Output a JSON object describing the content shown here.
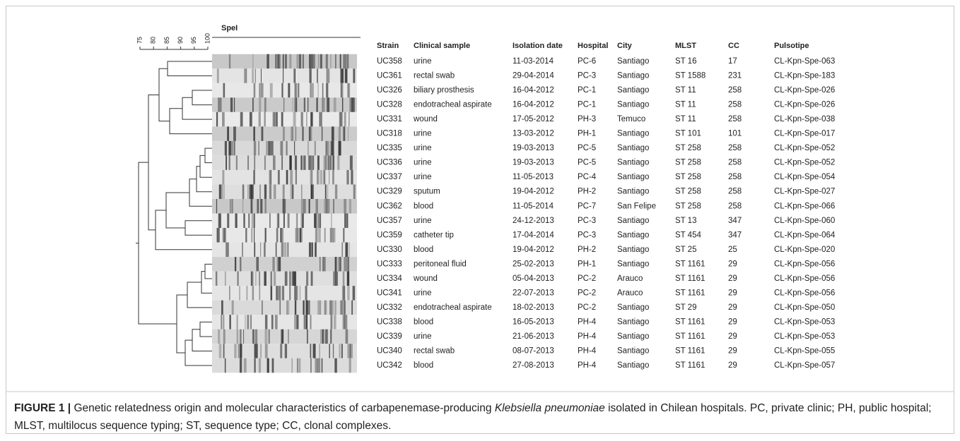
{
  "figure": {
    "gel_label": "SpeI",
    "scale_ticks": [
      75,
      80,
      85,
      90,
      95,
      100
    ],
    "table": {
      "headers": [
        "Strain",
        "Clinical sample",
        "Isolation date",
        "Hospital",
        "City",
        "MLST",
        "CC",
        "Pulsotipe"
      ],
      "rows": [
        [
          "UC358",
          "urine",
          "11-03-2014",
          "PC-6",
          "Santiago",
          "ST 16",
          "17",
          "CL-Kpn-Spe-063"
        ],
        [
          "UC361",
          "rectal swab",
          "29-04-2014",
          "PC-3",
          "Santiago",
          "ST 1588",
          "231",
          "CL-Kpn-Spe-183"
        ],
        [
          "UC326",
          "biliary prosthesis",
          "16-04-2012",
          "PC-1",
          "Santiago",
          "ST 11",
          "258",
          "CL-Kpn-Spe-026"
        ],
        [
          "UC328",
          "endotracheal aspirate",
          "16-04-2012",
          "PC-1",
          "Santiago",
          "ST 11",
          "258",
          "CL-Kpn-Spe-026"
        ],
        [
          "UC331",
          "wound",
          "17-05-2012",
          "PH-3",
          "Temuco",
          "ST 11",
          "258",
          "CL-Kpn-Spe-038"
        ],
        [
          "UC318",
          "urine",
          "13-03-2012",
          "PH-1",
          "Santiago",
          "ST 101",
          "101",
          "CL-Kpn-Spe-017"
        ],
        [
          "UC335",
          "urine",
          "19-03-2013",
          "PC-5",
          "Santiago",
          "ST 258",
          "258",
          "CL-Kpn-Spe-052"
        ],
        [
          "UC336",
          "urine",
          "19-03-2013",
          "PC-5",
          "Santiago",
          "ST 258",
          "258",
          "CL-Kpn-Spe-052"
        ],
        [
          "UC337",
          "urine",
          "11-05-2013",
          "PC-4",
          "Santiago",
          "ST 258",
          "258",
          "CL-Kpn-Spe-054"
        ],
        [
          "UC329",
          "sputum",
          "19-04-2012",
          "PH-2",
          "Santiago",
          "ST 258",
          "258",
          "CL-Kpn-Spe-027"
        ],
        [
          "UC362",
          "blood",
          "11-05-2014",
          "PC-7",
          "San Felipe",
          "ST 258",
          "258",
          "CL-Kpn-Spe-066"
        ],
        [
          "UC357",
          "urine",
          "24-12-2013",
          "PC-3",
          "Santiago",
          "ST 13",
          "347",
          "CL-Kpn-Spe-060"
        ],
        [
          "UC359",
          "catheter tip",
          "17-04-2014",
          "PC-3",
          "Santiago",
          "ST 454",
          "347",
          "CL-Kpn-Spe-064"
        ],
        [
          "UC330",
          "blood",
          "19-04-2012",
          "PH-2",
          "Santiago",
          "ST 25",
          "25",
          "CL-Kpn-Spe-020"
        ],
        [
          "UC333",
          "peritoneal fluid",
          "25-02-2013",
          "PH-1",
          "Santiago",
          "ST 1161",
          "29",
          "CL-Kpn-Spe-056"
        ],
        [
          "UC334",
          "wound",
          "05-04-2013",
          "PC-2",
          "Arauco",
          "ST 1161",
          "29",
          "CL-Kpn-Spe-056"
        ],
        [
          "UC341",
          "urine",
          "22-07-2013",
          "PC-2",
          "Arauco",
          "ST 1161",
          "29",
          "CL-Kpn-Spe-056"
        ],
        [
          "UC332",
          "endotracheal aspirate",
          "18-02-2013",
          "PC-2",
          "Santiago",
          "ST 29",
          "29",
          "CL-Kpn-Spe-050"
        ],
        [
          "UC338",
          "blood",
          "16-05-2013",
          "PH-4",
          "Santiago",
          "ST 1161",
          "29",
          "CL-Kpn-Spe-053"
        ],
        [
          "UC339",
          "urine",
          "21-06-2013",
          "PH-4",
          "Santiago",
          "ST 1161",
          "29",
          "CL-Kpn-Spe-053"
        ],
        [
          "UC340",
          "rectal swab",
          "08-07-2013",
          "PH-4",
          "Santiago",
          "ST 1161",
          "29",
          "CL-Kpn-Spe-055"
        ],
        [
          "UC342",
          "blood",
          "27-08-2013",
          "PH-4",
          "Santiago",
          "ST 1161",
          "29",
          "CL-Kpn-Spe-057"
        ]
      ]
    },
    "caption": {
      "label": "FIGURE 1 |",
      "text_before": "Genetic relatedness origin and molecular characteristics of carbapenemase-producing",
      "italic": "Klebsiella pneumoniae",
      "text_after": "isolated in Chilean hospitals. PC, private clinic; PH, public hospital; MLST, multilocus sequence typing; ST, sequence type; CC, clonal complexes."
    }
  }
}
